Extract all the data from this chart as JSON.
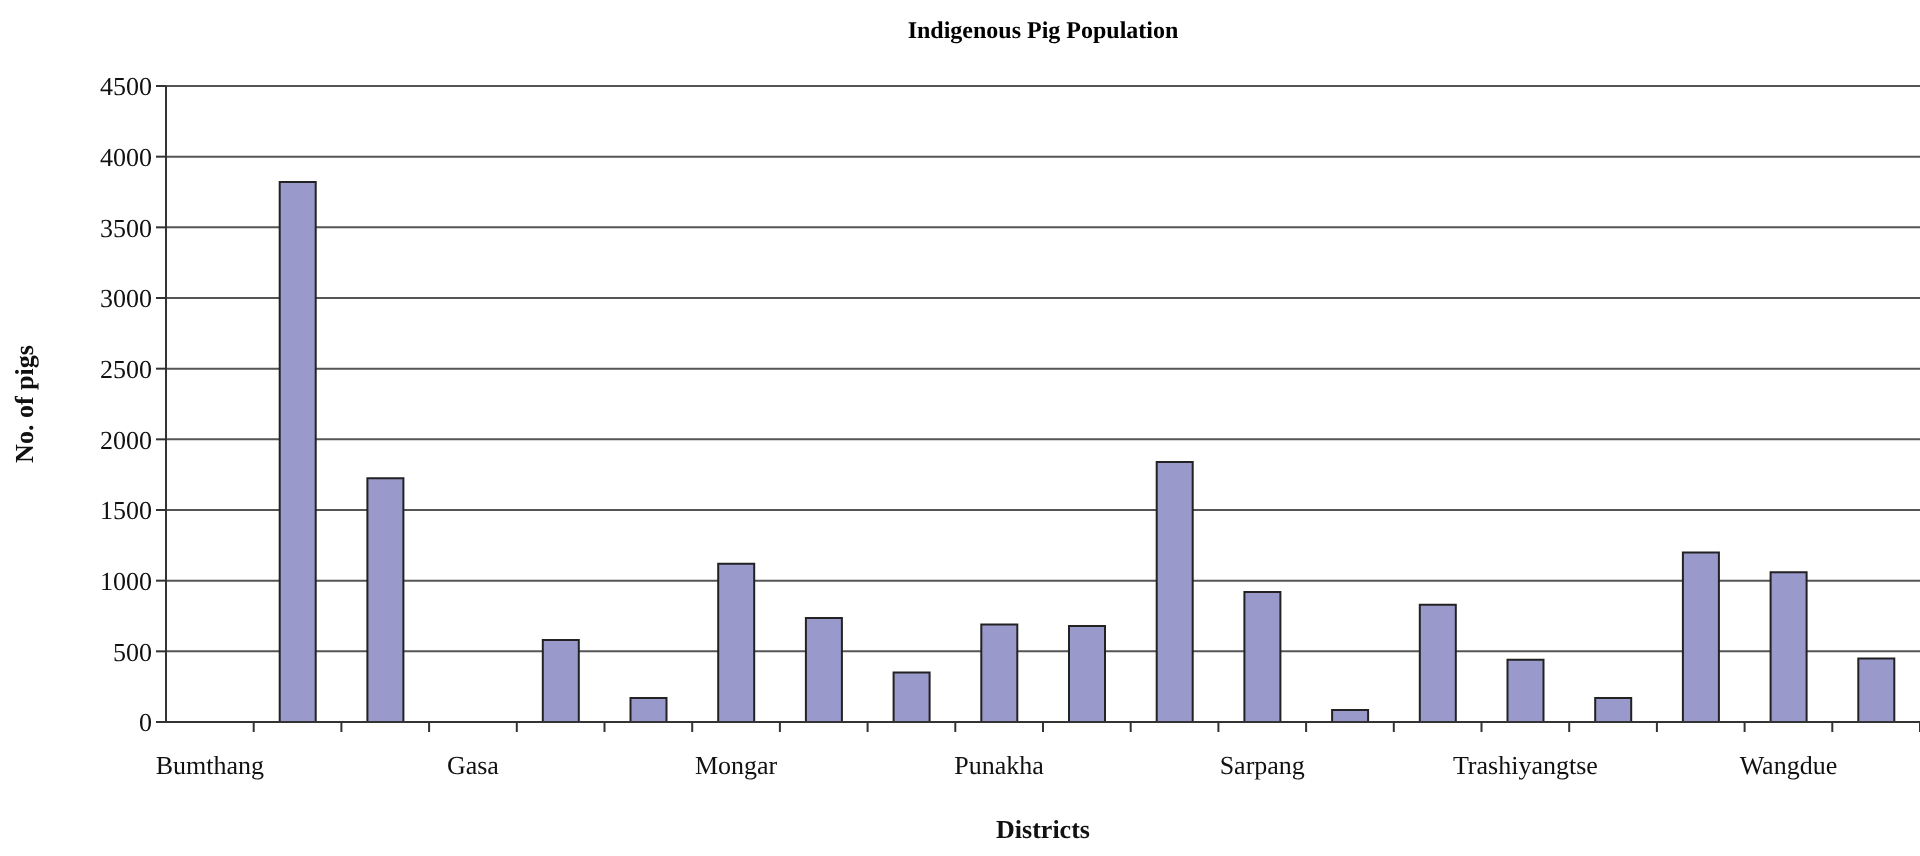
{
  "chart_data": {
    "type": "bar",
    "title": "Indigenous Pig Population",
    "xlabel": "Districts",
    "ylabel": "No. of pigs",
    "categories": [
      "Bumthang",
      null,
      null,
      "Gasa",
      null,
      null,
      "Mongar",
      null,
      null,
      "Punakha",
      null,
      null,
      "Sarpang",
      null,
      null,
      "Trashiyangtse",
      null,
      null,
      "Wangdue",
      null
    ],
    "values": [
      null,
      3820,
      1725,
      null,
      580,
      170,
      1120,
      735,
      350,
      690,
      680,
      1840,
      920,
      85,
      830,
      440,
      170,
      1200,
      1060,
      450
    ],
    "color": "#9999cc",
    "ylim": [
      0,
      4500
    ],
    "yticks": [
      0,
      500,
      1000,
      1500,
      2000,
      2500,
      3000,
      3500,
      4000,
      4500
    ],
    "grid": "y"
  }
}
